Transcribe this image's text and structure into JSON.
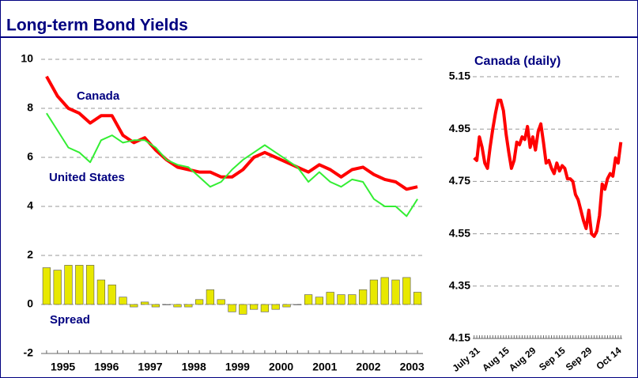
{
  "header": {
    "title": "Long-term Bond Yields"
  },
  "chart_data": [
    {
      "type": "line",
      "categories": [
        "1995",
        null,
        null,
        null,
        "1996",
        null,
        null,
        null,
        "1997",
        null,
        null,
        null,
        "1998",
        null,
        null,
        null,
        "1999",
        null,
        null,
        null,
        "2000",
        null,
        null,
        null,
        "2001",
        null,
        null,
        null,
        "2002",
        null,
        null,
        null,
        "2003",
        null,
        null
      ],
      "series": [
        {
          "name": "Canada",
          "type": "line",
          "color": "#ff0000",
          "values": [
            9.3,
            8.5,
            8.0,
            7.8,
            7.4,
            7.7,
            7.7,
            6.9,
            6.6,
            6.8,
            6.3,
            5.9,
            5.6,
            5.5,
            5.4,
            5.4,
            5.2,
            5.2,
            5.5,
            6.0,
            6.2,
            6.0,
            5.8,
            5.6,
            5.4,
            5.7,
            5.5,
            5.2,
            5.5,
            5.6,
            5.3,
            5.1,
            5.0,
            4.7,
            4.8
          ]
        },
        {
          "name": "United States",
          "type": "line",
          "color": "#33ee33",
          "values": [
            7.8,
            7.1,
            6.4,
            6.2,
            5.8,
            6.7,
            6.9,
            6.6,
            6.7,
            6.7,
            6.4,
            5.9,
            5.7,
            5.6,
            5.2,
            4.8,
            5.0,
            5.5,
            5.9,
            6.2,
            6.5,
            6.2,
            5.9,
            5.6,
            5.0,
            5.4,
            5.0,
            4.8,
            5.1,
            5.0,
            4.3,
            4.0,
            4.0,
            3.6,
            4.3
          ]
        },
        {
          "name": "Spread",
          "type": "bar",
          "color": "#e8e800",
          "values": [
            1.5,
            1.4,
            1.6,
            1.6,
            1.6,
            1.0,
            0.8,
            0.3,
            -0.1,
            0.1,
            -0.1,
            0.0,
            -0.1,
            -0.1,
            0.2,
            0.6,
            0.2,
            -0.3,
            -0.4,
            -0.2,
            -0.3,
            -0.2,
            -0.1,
            0.0,
            0.4,
            0.3,
            0.5,
            0.4,
            0.4,
            0.6,
            1.0,
            1.1,
            1.0,
            1.1,
            0.5
          ]
        }
      ],
      "ylim": [
        -2,
        10
      ],
      "yticks": [
        -2,
        0,
        2,
        4,
        6,
        8,
        10
      ],
      "grid": true
    },
    {
      "type": "line",
      "title": "Canada (daily)",
      "color": "#ff0000",
      "categories": [
        "July 31",
        null,
        null,
        null,
        null,
        null,
        null,
        null,
        null,
        null,
        null,
        "Aug 15",
        null,
        null,
        null,
        null,
        null,
        null,
        null,
        null,
        null,
        "Aug 29",
        null,
        null,
        null,
        null,
        null,
        null,
        null,
        null,
        null,
        null,
        "Sep 15",
        null,
        null,
        null,
        null,
        null,
        null,
        null,
        null,
        null,
        "Sep 29",
        null,
        null,
        null,
        null,
        null,
        null,
        null,
        null,
        null,
        null,
        "Oct 14",
        null,
        null
      ],
      "values": [
        4.84,
        4.83,
        4.92,
        4.88,
        4.82,
        4.8,
        4.88,
        4.95,
        5.01,
        5.06,
        5.06,
        5.02,
        4.93,
        4.86,
        4.8,
        4.83,
        4.9,
        4.89,
        4.92,
        4.91,
        4.96,
        4.88,
        4.92,
        4.87,
        4.94,
        4.97,
        4.9,
        4.82,
        4.83,
        4.8,
        4.78,
        4.82,
        4.79,
        4.81,
        4.8,
        4.76,
        4.76,
        4.75,
        4.7,
        4.68,
        4.64,
        4.6,
        4.57,
        4.64,
        4.55,
        4.54,
        4.56,
        4.62,
        4.74,
        4.72,
        4.76,
        4.78,
        4.77,
        4.84,
        4.82,
        4.9
      ],
      "ylim": [
        4.15,
        5.15
      ],
      "yticks": [
        4.15,
        4.35,
        4.55,
        4.75,
        4.95,
        5.15
      ],
      "grid": true
    }
  ]
}
